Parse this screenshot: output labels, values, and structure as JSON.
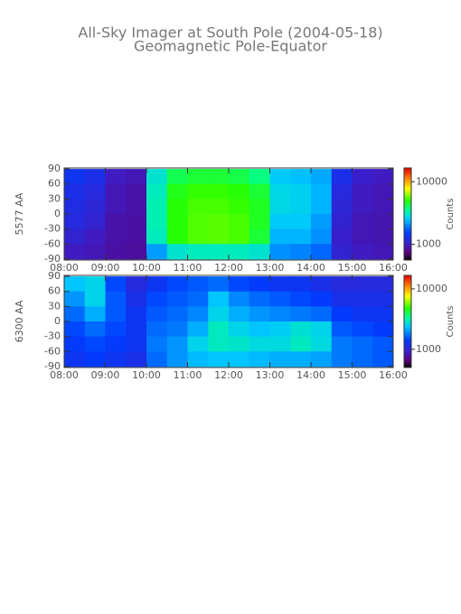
{
  "chart_data": [
    {
      "type": "heatmap",
      "title": "All-Sky Imager at South Pole (2004-05-18)",
      "subtitle": "Geomagnetic Pole-Equator",
      "ylabel": "5577 AA",
      "colorbar_label": "Counts",
      "colormap": "rainbow",
      "log_color": true,
      "x_edges": [
        8,
        8.5,
        9,
        9.5,
        10,
        10.5,
        11,
        11.5,
        12,
        12.5,
        13,
        13.5,
        14,
        14.5,
        15,
        15.5,
        16
      ],
      "y_edges": [
        90,
        60,
        30,
        0,
        -30,
        -60,
        -90
      ],
      "values": [
        [
          1400,
          1300,
          1000,
          950,
          3000,
          4200,
          4500,
          4500,
          4300,
          3800,
          2600,
          2500,
          2300,
          1300,
          1050,
          1000
        ],
        [
          1300,
          1200,
          950,
          900,
          3200,
          4800,
          5200,
          5200,
          5000,
          4500,
          2800,
          2700,
          2400,
          1200,
          1000,
          950
        ],
        [
          1250,
          1150,
          950,
          900,
          3300,
          5000,
          5400,
          5400,
          5200,
          4700,
          2800,
          2700,
          2400,
          1150,
          1000,
          950
        ],
        [
          1200,
          1100,
          900,
          880,
          3300,
          5000,
          5500,
          5600,
          5400,
          4700,
          2600,
          2600,
          2200,
          1100,
          950,
          930
        ],
        [
          1100,
          1000,
          900,
          880,
          3200,
          5000,
          5500,
          5600,
          5400,
          4500,
          2400,
          2400,
          2100,
          1050,
          950,
          930
        ],
        [
          1000,
          950,
          880,
          860,
          2200,
          3000,
          3200,
          3200,
          3200,
          3000,
          2100,
          2000,
          1800,
          1100,
          1000,
          950
        ]
      ],
      "xlim": [
        8,
        16
      ],
      "ylim": [
        -92,
        92
      ],
      "xticks": [
        {
          "value": 8,
          "label": "08:00"
        },
        {
          "value": 9,
          "label": "09:00"
        },
        {
          "value": 10,
          "label": "10:00"
        },
        {
          "value": 11,
          "label": "11:00"
        },
        {
          "value": 12,
          "label": "12:00"
        },
        {
          "value": 13,
          "label": "13:00"
        },
        {
          "value": 14,
          "label": "14:00"
        },
        {
          "value": 15,
          "label": "15:00"
        },
        {
          "value": 16,
          "label": "16:00"
        }
      ],
      "yticks": [
        90,
        60,
        30,
        0,
        -30,
        -60,
        -90
      ],
      "clim": [
        560,
        16600
      ],
      "cticks": [
        1000,
        10000
      ]
    },
    {
      "type": "heatmap",
      "ylabel": "6300 AA",
      "colorbar_label": "Counts",
      "colormap": "rainbow",
      "log_color": true,
      "x_edges": [
        8,
        8.5,
        9,
        9.5,
        10,
        10.5,
        11,
        11.5,
        12,
        12.5,
        13,
        13.5,
        14,
        14.5,
        15,
        15.5,
        16
      ],
      "y_edges": [
        90,
        60,
        30,
        0,
        -30,
        -60,
        -90
      ],
      "values": [
        [
          2400,
          2600,
          1500,
          1100,
          1300,
          1500,
          1600,
          1700,
          1500,
          1400,
          1300,
          1300,
          1200,
          1100,
          1100,
          1100
        ],
        [
          2000,
          2600,
          1600,
          1200,
          1500,
          1600,
          1700,
          2400,
          1900,
          1700,
          1600,
          1500,
          1400,
          1200,
          1200,
          1200
        ],
        [
          1700,
          2200,
          1600,
          1300,
          1600,
          1700,
          1900,
          2600,
          2200,
          2000,
          1900,
          1800,
          1700,
          1400,
          1300,
          1300
        ],
        [
          1500,
          1700,
          1500,
          1300,
          1700,
          1800,
          2200,
          3000,
          2600,
          2400,
          2500,
          2800,
          2600,
          1600,
          1500,
          1400
        ],
        [
          1400,
          1500,
          1400,
          1300,
          1800,
          2000,
          2600,
          3000,
          2900,
          2700,
          2700,
          3000,
          2700,
          1800,
          1700,
          1600
        ],
        [
          1300,
          1400,
          1300,
          1200,
          1700,
          2000,
          2300,
          2400,
          2400,
          2300,
          2200,
          2200,
          2100,
          1800,
          1700,
          1600
        ]
      ],
      "xlim": [
        8,
        16
      ],
      "ylim": [
        -92,
        92
      ],
      "xticks": [
        {
          "value": 8,
          "label": "08:00"
        },
        {
          "value": 9,
          "label": "09:00"
        },
        {
          "value": 10,
          "label": "10:00"
        },
        {
          "value": 11,
          "label": "11:00"
        },
        {
          "value": 12,
          "label": "12:00"
        },
        {
          "value": 13,
          "label": "13:00"
        },
        {
          "value": 14,
          "label": "14:00"
        },
        {
          "value": 15,
          "label": "15:00"
        },
        {
          "value": 16,
          "label": "16:00"
        }
      ],
      "yticks": [
        90,
        60,
        30,
        0,
        -30,
        -60,
        -90
      ],
      "clim": [
        500,
        16700
      ],
      "cticks": [
        1000,
        10000
      ]
    }
  ]
}
